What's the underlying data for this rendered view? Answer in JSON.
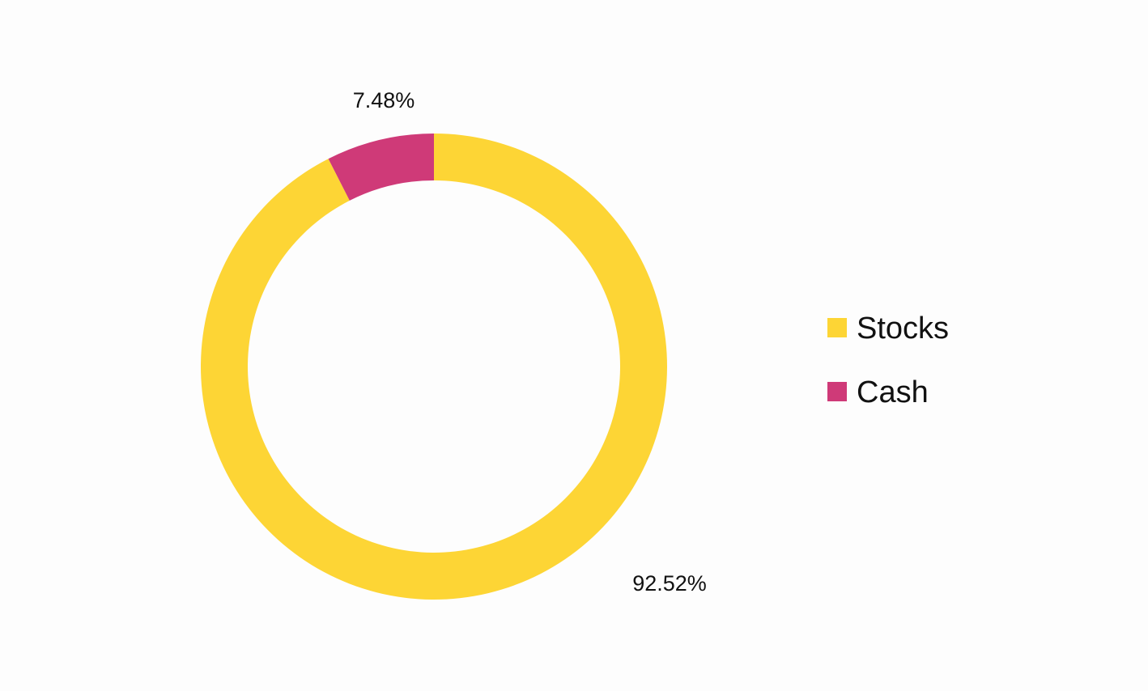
{
  "chart_data": {
    "type": "pie",
    "style": "donut",
    "series": [
      {
        "categories": [
          "Stocks",
          "Cash"
        ],
        "values": [
          92.52,
          7.48
        ],
        "labels": [
          "92.52%",
          "7.48%"
        ],
        "colors": [
          "#fdd535",
          "#cf3a78"
        ]
      }
    ],
    "legend": {
      "position": "right",
      "items": [
        {
          "label": "Stocks",
          "color": "#fdd535"
        },
        {
          "label": "Cash",
          "color": "#cf3a78"
        }
      ]
    }
  }
}
